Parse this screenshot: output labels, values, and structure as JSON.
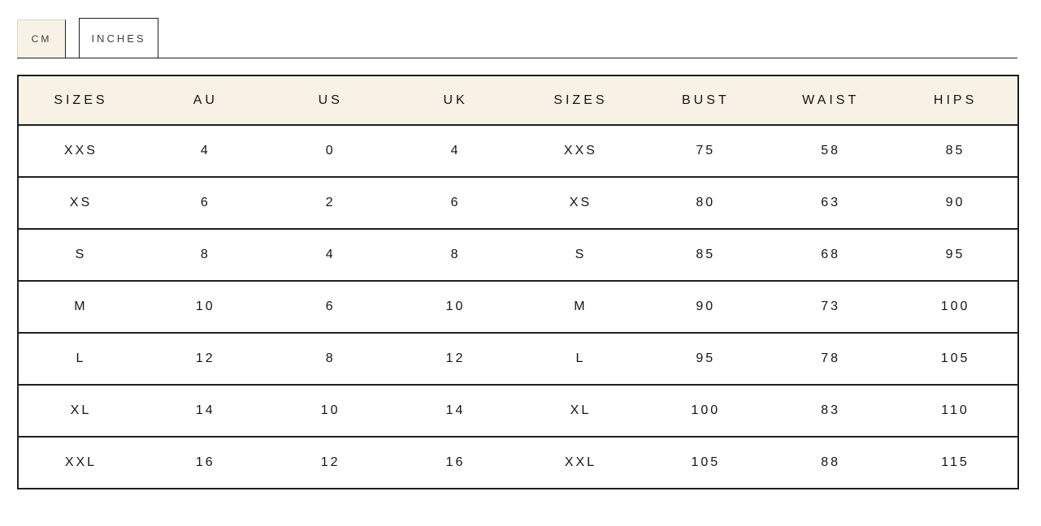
{
  "colors": {
    "accent_cream": "#f7f1e6",
    "border_dark": "#1f1f1f",
    "text": "#141414",
    "background": "#ffffff"
  },
  "tabs": {
    "items": [
      {
        "id": "cm",
        "label": "CM",
        "active": true
      },
      {
        "id": "inches",
        "label": "INCHES",
        "active": false
      }
    ]
  },
  "table": {
    "headers": [
      "SIZES",
      "AU",
      "US",
      "UK",
      "SIZES",
      "BUST",
      "WAIST",
      "HIPS"
    ],
    "rows": [
      [
        "XXS",
        "4",
        "0",
        "4",
        "XXS",
        "75",
        "58",
        "85"
      ],
      [
        "XS",
        "6",
        "2",
        "6",
        "XS",
        "80",
        "63",
        "90"
      ],
      [
        "S",
        "8",
        "4",
        "8",
        "S",
        "85",
        "68",
        "95"
      ],
      [
        "M",
        "10",
        "6",
        "10",
        "M",
        "90",
        "73",
        "100"
      ],
      [
        "L",
        "12",
        "8",
        "12",
        "L",
        "95",
        "78",
        "105"
      ],
      [
        "XL",
        "14",
        "10",
        "14",
        "XL",
        "100",
        "83",
        "110"
      ],
      [
        "XXL",
        "16",
        "12",
        "16",
        "XXL",
        "105",
        "88",
        "115"
      ]
    ]
  }
}
